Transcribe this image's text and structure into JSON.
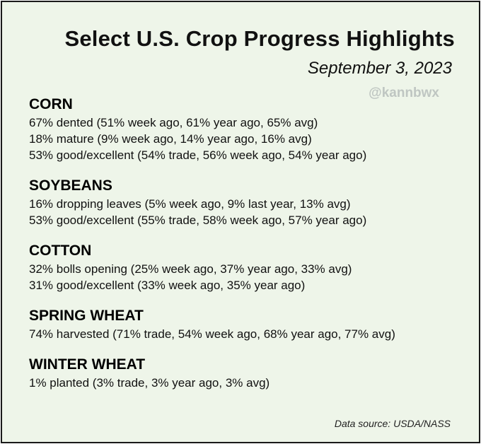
{
  "header": {
    "title": "Select U.S. Crop Progress Highlights",
    "date": "September 3, 2023",
    "handle": "@kannbwx"
  },
  "sections": [
    {
      "heading": "CORN",
      "lines": [
        "67% dented (51% week ago, 61% year ago, 65% avg)",
        "18% mature (9% week ago, 14% year ago, 16% avg)",
        "53% good/excellent (54% trade, 56% week ago, 54% year ago)"
      ]
    },
    {
      "heading": "SOYBEANS",
      "lines": [
        "16% dropping leaves (5% week ago, 9% last year, 13% avg)",
        "53% good/excellent (55% trade, 58% week ago, 57% year ago)"
      ]
    },
    {
      "heading": "COTTON",
      "lines": [
        "32% bolls opening (25% week ago, 37% year ago, 33% avg)",
        "31% good/excellent (33% week ago, 35% year ago)"
      ]
    },
    {
      "heading": "SPRING WHEAT",
      "lines": [
        "74% harvested (71% trade, 54% week ago, 68% year ago, 77% avg)"
      ]
    },
    {
      "heading": "WINTER WHEAT",
      "lines": [
        "1% planted (3% trade, 3% year ago, 3% avg)"
      ]
    }
  ],
  "footer": {
    "source": "Data source: USDA/NASS"
  },
  "colors": {
    "background": "#eef5e9",
    "border": "#1a1a1a",
    "watermark": "#bfc6c2"
  }
}
